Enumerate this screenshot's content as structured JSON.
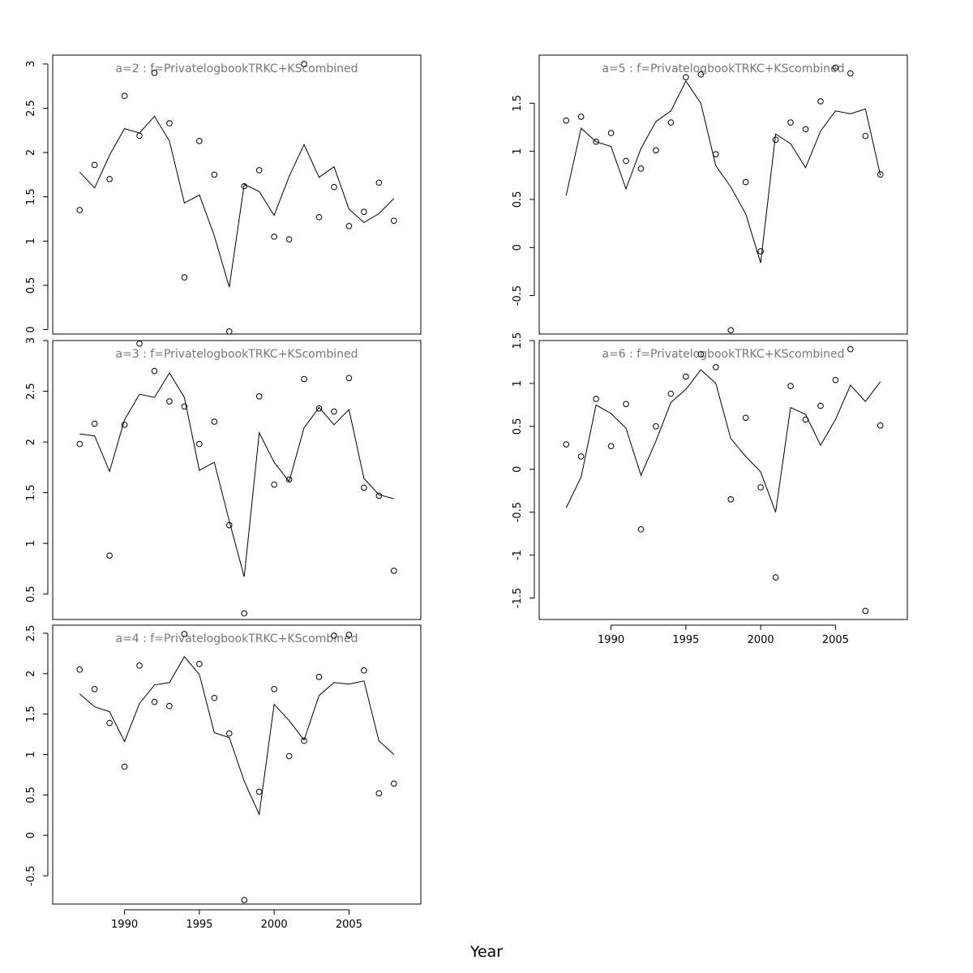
{
  "figure": {
    "xlabel": "Year"
  },
  "chart_data": [
    {
      "type": "scatter",
      "title": "a=2 : f=PrivatelogbookTRKC+KScombined",
      "x": [
        1987,
        1988,
        1989,
        1990,
        1991,
        1992,
        1993,
        1994,
        1995,
        1996,
        1997,
        1998,
        1999,
        2000,
        2001,
        2002,
        2003,
        2004,
        2005,
        2006,
        2007,
        2008
      ],
      "series": [
        {
          "kind": "points",
          "values": [
            1.35,
            1.86,
            1.7,
            2.64,
            2.19,
            2.9,
            2.33,
            0.59,
            2.13,
            1.75,
            -0.02,
            1.62,
            1.8,
            1.05,
            1.02,
            3.0,
            1.27,
            1.61,
            1.17,
            1.33,
            1.66,
            1.23
          ]
        },
        {
          "kind": "line",
          "values": [
            1.78,
            1.6,
            1.97,
            2.27,
            2.22,
            2.41,
            2.13,
            1.43,
            1.52,
            1.06,
            0.48,
            1.64,
            1.56,
            1.29,
            1.73,
            2.09,
            1.72,
            1.84,
            1.36,
            1.21,
            1.31,
            1.48
          ]
        }
      ],
      "xlim": [
        1985.2,
        2009.8
      ],
      "ylim": [
        -0.05,
        3.1
      ],
      "yticks": [
        0.0,
        0.5,
        1.0,
        1.5,
        2.0,
        2.5,
        3.0
      ],
      "show_xaxis": false
    },
    {
      "type": "scatter",
      "title": "a=3 : f=PrivatelogbookTRKC+KScombined",
      "x": [
        1987,
        1988,
        1989,
        1990,
        1991,
        1992,
        1993,
        1994,
        1995,
        1996,
        1997,
        1998,
        1999,
        2000,
        2001,
        2002,
        2003,
        2004,
        2005,
        2006,
        2007,
        2008
      ],
      "series": [
        {
          "kind": "points",
          "values": [
            1.98,
            2.18,
            0.88,
            2.17,
            2.97,
            2.7,
            2.4,
            2.35,
            1.98,
            2.2,
            1.18,
            0.31,
            2.45,
            1.58,
            1.63,
            2.62,
            2.33,
            2.3,
            2.63,
            1.55,
            1.47,
            0.73
          ]
        },
        {
          "kind": "line",
          "values": [
            2.08,
            2.06,
            1.71,
            2.22,
            2.47,
            2.44,
            2.68,
            2.44,
            1.72,
            1.8,
            1.22,
            0.67,
            2.09,
            1.8,
            1.61,
            2.14,
            2.34,
            2.17,
            2.32,
            1.64,
            1.48,
            1.44
          ]
        }
      ],
      "xlim": [
        1985.2,
        2009.8
      ],
      "ylim": [
        0.25,
        3.0
      ],
      "yticks": [
        0.5,
        1.0,
        1.5,
        2.0,
        2.5,
        3.0
      ],
      "show_xaxis": false
    },
    {
      "type": "scatter",
      "title": "a=4 : f=PrivatelogbookTRKC+KScombined",
      "x": [
        1987,
        1988,
        1989,
        1990,
        1991,
        1992,
        1993,
        1994,
        1995,
        1996,
        1997,
        1998,
        1999,
        2000,
        2001,
        2002,
        2003,
        2004,
        2005,
        2006,
        2007,
        2008
      ],
      "series": [
        {
          "kind": "points",
          "values": [
            2.05,
            1.81,
            1.39,
            0.85,
            2.1,
            1.65,
            1.6,
            2.49,
            2.12,
            1.7,
            1.26,
            -0.8,
            0.54,
            1.81,
            0.98,
            1.17,
            1.96,
            2.47,
            2.48,
            2.04,
            0.52,
            0.64
          ]
        },
        {
          "kind": "line",
          "values": [
            1.75,
            1.59,
            1.53,
            1.16,
            1.63,
            1.86,
            1.89,
            2.21,
            1.99,
            1.27,
            1.21,
            0.67,
            0.26,
            1.62,
            1.42,
            1.18,
            1.73,
            1.89,
            1.87,
            1.91,
            1.17,
            1.0
          ]
        }
      ],
      "xlim": [
        1985.2,
        2009.8
      ],
      "ylim": [
        -0.85,
        2.6
      ],
      "yticks": [
        -0.5,
        0.0,
        0.5,
        1.0,
        1.5,
        2.0,
        2.5
      ],
      "xticks": [
        1990,
        1995,
        2000,
        2005
      ],
      "show_xaxis": true
    },
    {
      "type": "scatter",
      "title": "a=5 : f=PrivatelogbookTRKC+KScombined",
      "x": [
        1987,
        1988,
        1989,
        1990,
        1991,
        1992,
        1993,
        1994,
        1995,
        1996,
        1997,
        1998,
        1999,
        2000,
        2001,
        2002,
        2003,
        2004,
        2005,
        2006,
        2007,
        2008
      ],
      "series": [
        {
          "kind": "points",
          "values": [
            1.32,
            1.36,
            1.1,
            1.19,
            0.9,
            0.82,
            1.01,
            1.3,
            1.77,
            1.8,
            0.97,
            -0.86,
            0.68,
            -0.04,
            1.12,
            1.3,
            1.23,
            1.52,
            1.87,
            1.81,
            1.16,
            0.76
          ]
        },
        {
          "kind": "line",
          "values": [
            0.54,
            1.24,
            1.1,
            1.05,
            0.61,
            1.03,
            1.31,
            1.42,
            1.73,
            1.5,
            0.85,
            0.63,
            0.35,
            -0.16,
            1.18,
            1.08,
            0.83,
            1.21,
            1.42,
            1.39,
            1.44,
            0.75
          ]
        }
      ],
      "xlim": [
        1985.2,
        2009.8
      ],
      "ylim": [
        -0.9,
        2.0
      ],
      "yticks": [
        -0.5,
        0.0,
        0.5,
        1.0,
        1.5
      ],
      "show_xaxis": false
    },
    {
      "type": "scatter",
      "title": "a=6 : f=PrivatelogbookTRKC+KScombined",
      "x": [
        1987,
        1988,
        1989,
        1990,
        1991,
        1992,
        1993,
        1994,
        1995,
        1996,
        1997,
        1998,
        1999,
        2000,
        2001,
        2002,
        2003,
        2004,
        2005,
        2006,
        2007,
        2008
      ],
      "series": [
        {
          "kind": "points",
          "values": [
            0.29,
            0.15,
            0.82,
            0.27,
            0.76,
            -0.7,
            0.5,
            0.88,
            1.08,
            1.34,
            1.19,
            -0.35,
            0.6,
            -0.21,
            -1.26,
            0.97,
            0.58,
            0.74,
            1.04,
            1.4,
            -1.65,
            0.51
          ]
        },
        {
          "kind": "line",
          "values": [
            -0.45,
            -0.09,
            0.75,
            0.65,
            0.48,
            -0.07,
            0.33,
            0.78,
            0.93,
            1.16,
            1.0,
            0.36,
            0.15,
            -0.03,
            -0.5,
            0.72,
            0.64,
            0.28,
            0.58,
            0.98,
            0.79,
            1.02
          ]
        }
      ],
      "xlim": [
        1985.2,
        2009.8
      ],
      "ylim": [
        -1.75,
        1.5
      ],
      "yticks": [
        -1.5,
        -1.0,
        -0.5,
        0.0,
        0.5,
        1.0,
        1.5
      ],
      "xticks": [
        1990,
        1995,
        2000,
        2005
      ],
      "show_xaxis": true
    }
  ]
}
